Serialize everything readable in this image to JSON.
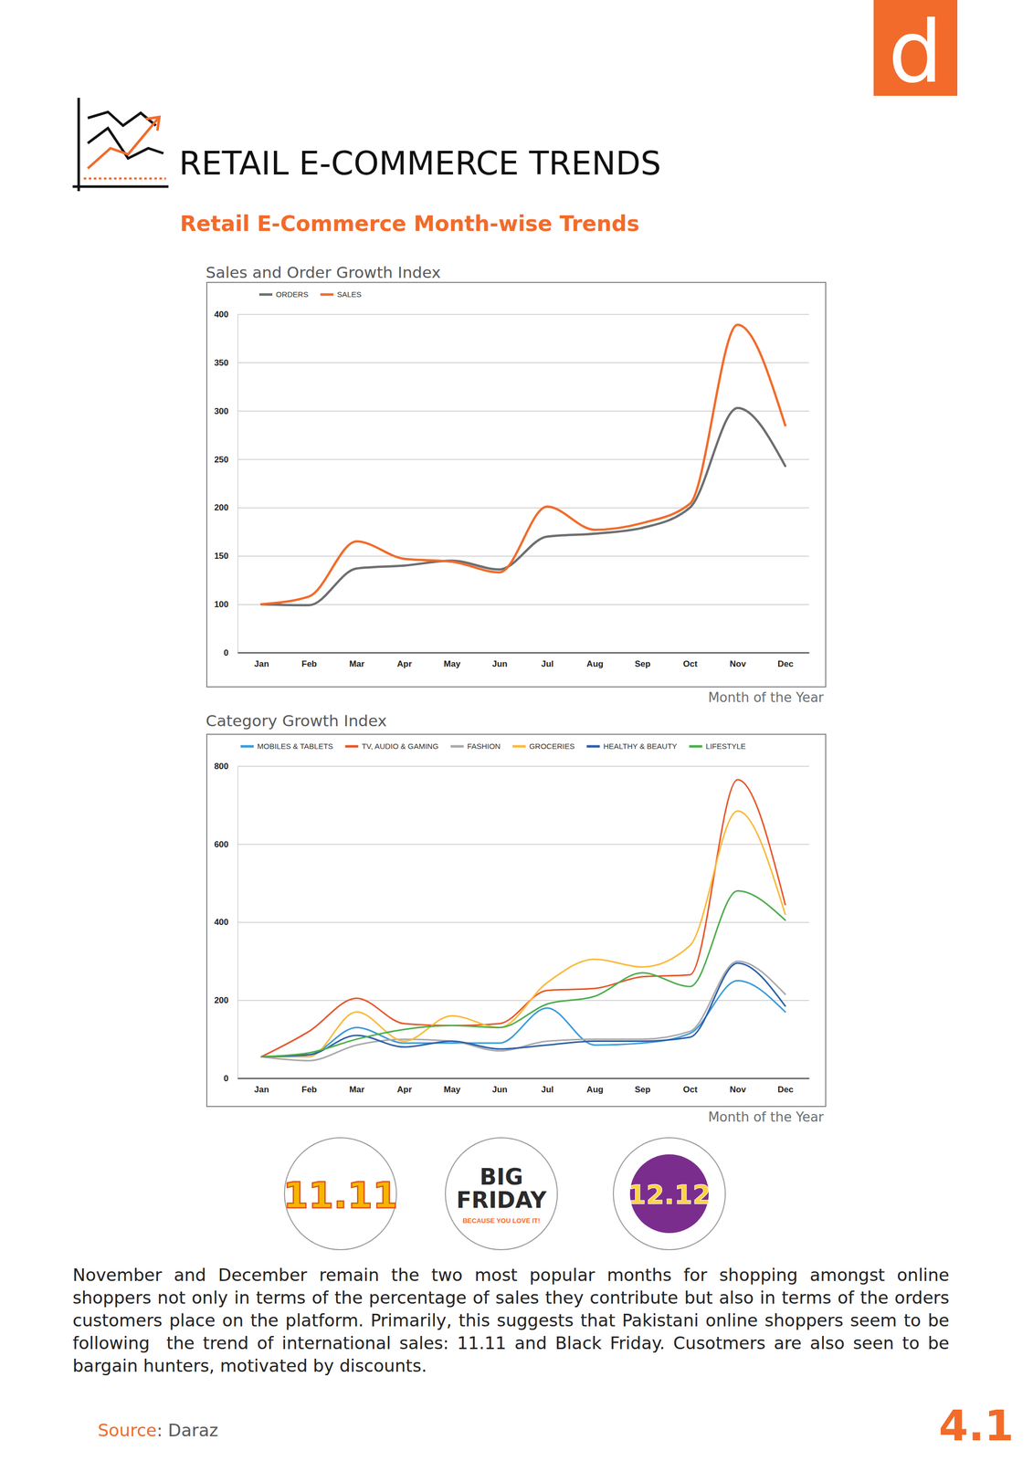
{
  "page": {
    "logo": "d",
    "title": "RETAIL E-COMMERCE TRENDS",
    "subtitle": "Retail E-Commerce Month-wise Trends",
    "badges": [
      {
        "label": "11.11"
      },
      {
        "label": "BIG FRIDAY",
        "tagline": "BECAUSE YOU LOVE IT!"
      },
      {
        "label": "12.12"
      }
    ],
    "paragraph": "November and December remain the two most popular months for shopping amongst online shoppers not only in terms of the percentage of sales they contribute but also in terms of the orders customers place on the platform. Primarily, this suggests that Pakistani online shoppers seem to be following  the trend of international sales: 11.11 and Black Friday. Cusotmers are also seen to be bargain hunters, motivated by discounts.",
    "source": "Source: Daraz",
    "page_number": "4.1"
  },
  "chart_data": [
    {
      "type": "line",
      "title": "Sales and Order Growth Index",
      "xlabel": "Month of the Year",
      "categories": [
        "Jan",
        "Feb",
        "Mar",
        "Apr",
        "May",
        "Jun",
        "Jul",
        "Aug",
        "Sep",
        "Oct",
        "Nov",
        "Dec"
      ],
      "series": [
        {
          "name": "ORDERS",
          "color": "#6d6e70",
          "values": [
            100,
            98,
            137,
            140,
            145,
            136,
            170,
            173,
            179,
            200,
            303,
            243
          ]
        },
        {
          "name": "SALES",
          "color": "#f26b2a",
          "values": [
            100,
            108,
            165,
            147,
            144,
            133,
            201,
            177,
            184,
            204,
            389,
            285
          ]
        }
      ],
      "ylim": [
        0,
        400
      ],
      "yticks": [
        0,
        100,
        150,
        200,
        250,
        300,
        350,
        400
      ],
      "grid": true,
      "legend": "top-left"
    },
    {
      "type": "line",
      "title": "Category Growth Index",
      "xlabel": "Month of the Year",
      "categories": [
        "Jan",
        "Feb",
        "Mar",
        "Apr",
        "May",
        "Jun",
        "Jul",
        "Aug",
        "Sep",
        "Oct",
        "Nov",
        "Dec"
      ],
      "series": [
        {
          "name": "MOBILES & TABLETS",
          "color": "#3a9ad9",
          "values": [
            55,
            60,
            130,
            90,
            90,
            90,
            180,
            85,
            90,
            115,
            250,
            170
          ]
        },
        {
          "name": "TV, AUDIO & GAMING",
          "color": "#e8562a",
          "values": [
            55,
            120,
            205,
            140,
            135,
            140,
            225,
            230,
            260,
            265,
            765,
            445
          ]
        },
        {
          "name": "FASHION",
          "color": "#a7a9ac",
          "values": [
            55,
            45,
            85,
            100,
            95,
            70,
            95,
            100,
            100,
            120,
            300,
            215
          ]
        },
        {
          "name": "GROCERIES",
          "color": "#fbb93a",
          "values": [
            55,
            55,
            170,
            95,
            160,
            130,
            245,
            305,
            285,
            340,
            685,
            420
          ]
        },
        {
          "name": "HEALTHY & BEAUTY",
          "color": "#2e5ea8",
          "values": [
            55,
            60,
            110,
            80,
            95,
            75,
            85,
            95,
            95,
            105,
            295,
            185
          ]
        },
        {
          "name": "LIFESTYLE",
          "color": "#4cae4c",
          "values": [
            55,
            65,
            100,
            125,
            135,
            130,
            190,
            210,
            270,
            235,
            480,
            405
          ]
        }
      ],
      "ylim": [
        0,
        800
      ],
      "yticks": [
        0,
        200,
        400,
        600,
        800
      ],
      "grid": true,
      "legend": "top-left"
    }
  ]
}
